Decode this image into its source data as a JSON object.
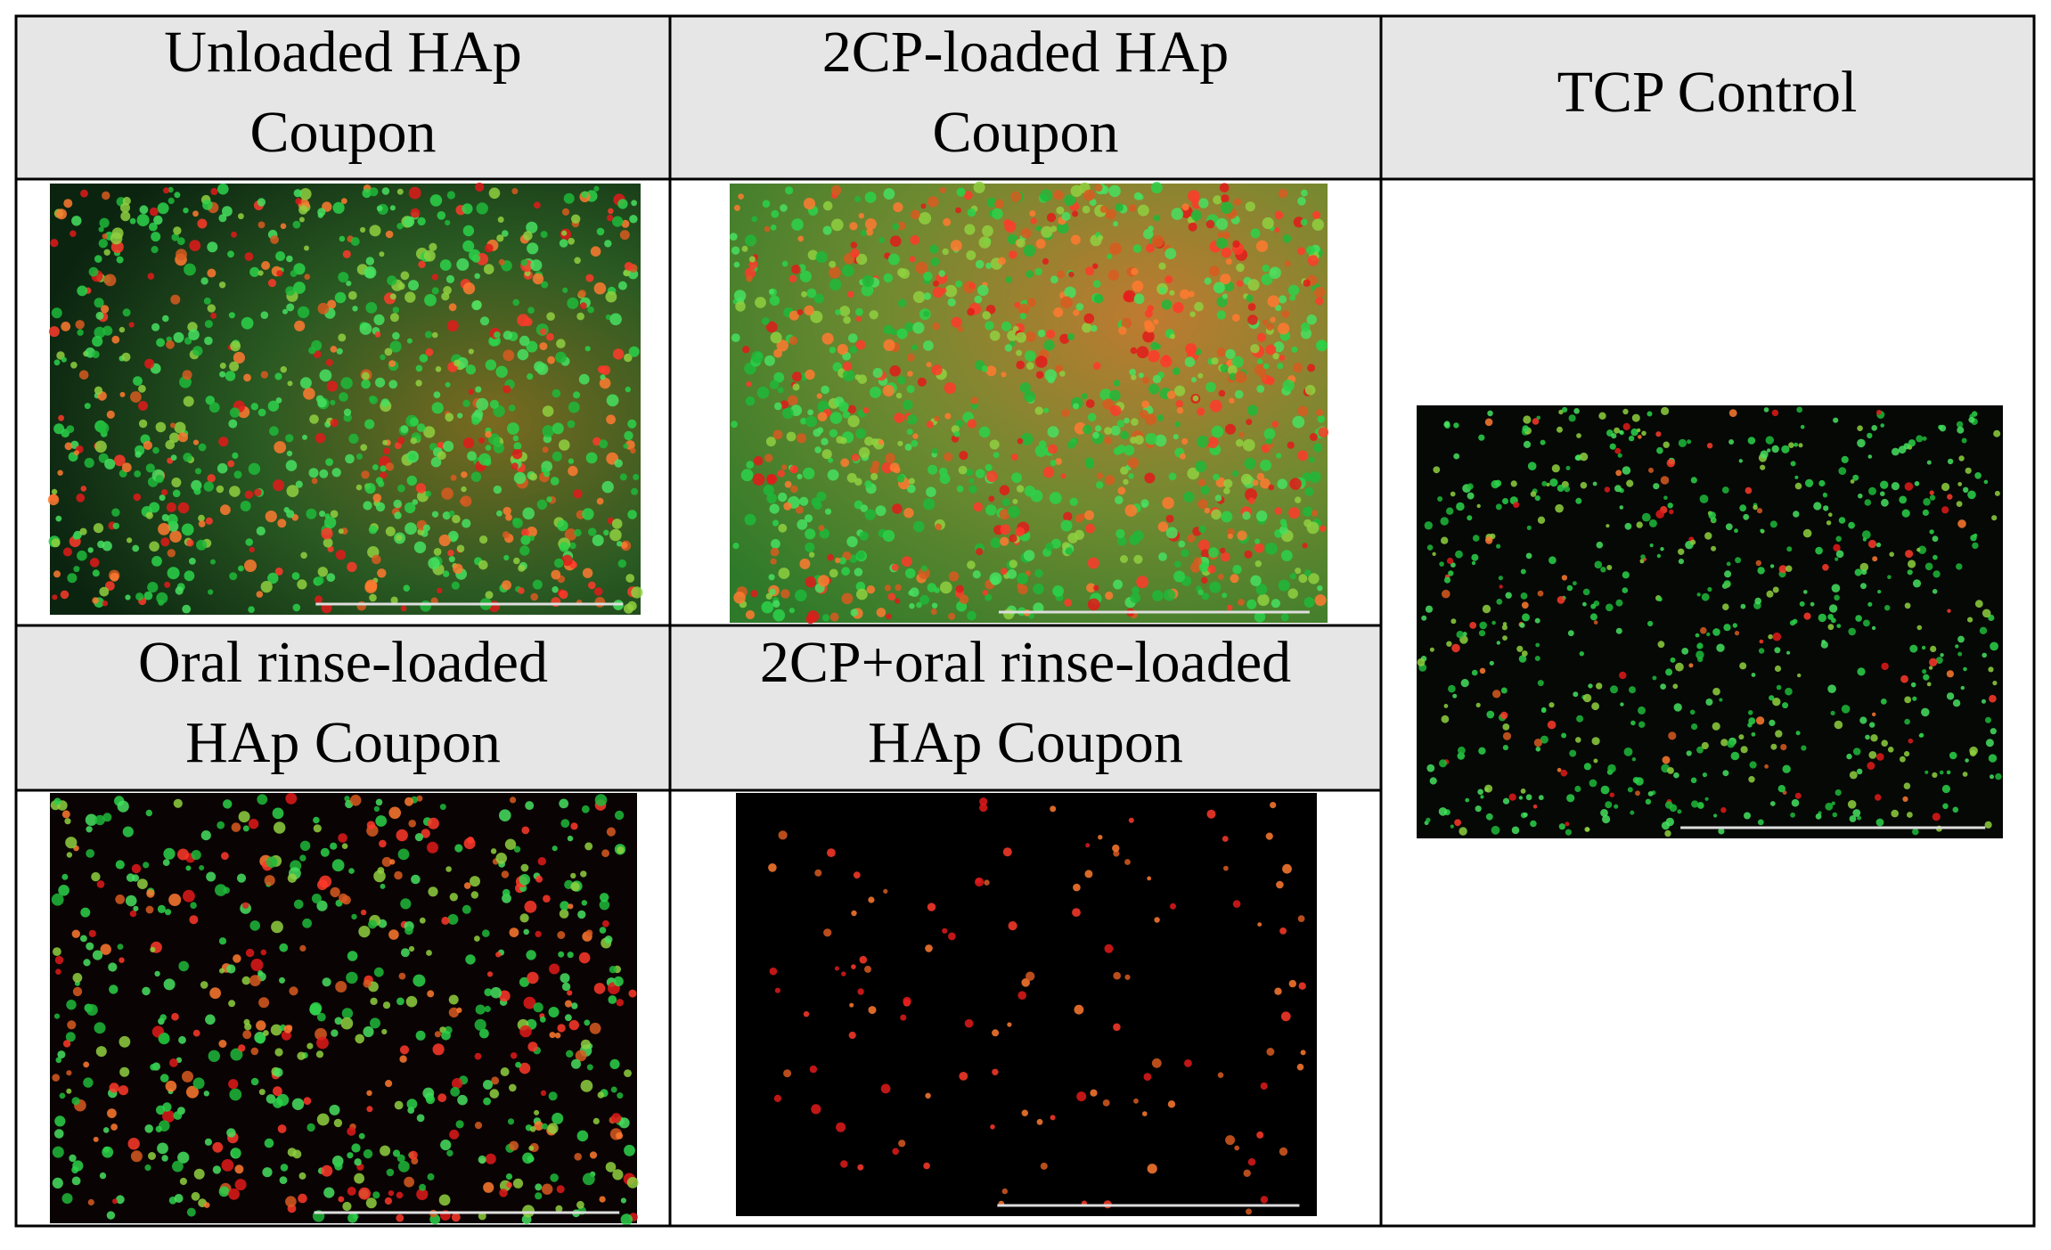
{
  "table": {
    "cells": [
      {
        "lines": [
          "Unloaded HAp",
          "Coupon"
        ]
      },
      {
        "lines": [
          "2CP-loaded HAp",
          "Coupon"
        ]
      },
      {
        "lines": [
          "TCP Control"
        ]
      },
      {
        "lines": [
          "Oral rinse-loaded",
          "HAp Coupon"
        ]
      },
      {
        "lines": [
          "2CP+oral rinse-loaded",
          "HAp Coupon"
        ]
      }
    ]
  }
}
